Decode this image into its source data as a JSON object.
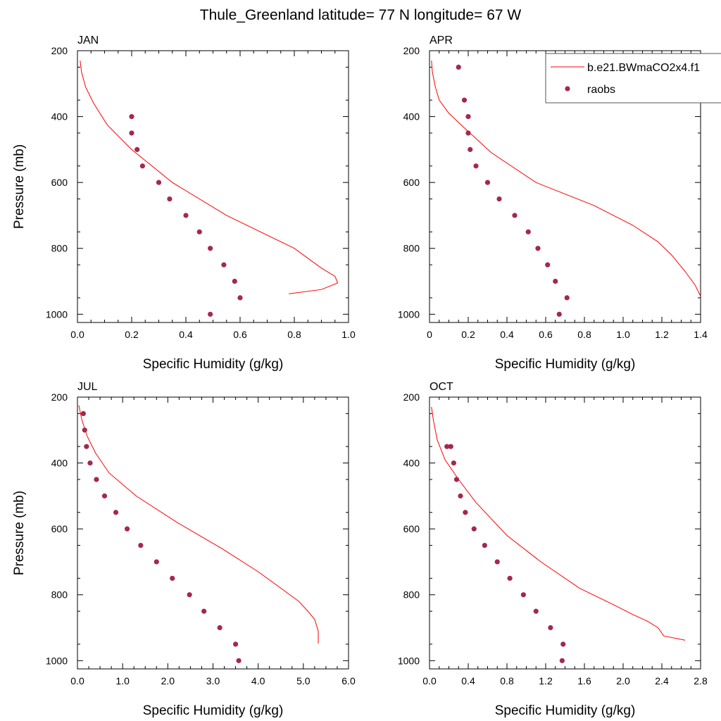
{
  "figure_title": "Thule_Greenland  latitude= 77 N longitude= 67 W",
  "colors": {
    "model": "#ff0000",
    "obs": "#a3284f",
    "axis": "#000000"
  },
  "legend": {
    "placement": "top-right",
    "model_label": "b.e21.BWmaCO2x4.f1",
    "obs_label": "raobs"
  },
  "chart_data": [
    {
      "type": "line+scatter",
      "title": "JAN",
      "xlabel": "Specific Humidity (g/kg)",
      "ylabel": "Pressure (mb)",
      "xlim": [
        0,
        1.0
      ],
      "ylim": [
        200,
        1025
      ],
      "y_reversed": true,
      "xticks": [
        "0.0",
        "0.2",
        "0.4",
        "0.6",
        "0.8",
        "1.0"
      ],
      "yticks": [
        "200",
        "400",
        "600",
        "800",
        "1000"
      ],
      "series": [
        {
          "name": "b.e21.BWmaCO2x4.f1",
          "kind": "line",
          "x": [
            0.78,
            0.9,
            0.96,
            0.95,
            0.9,
            0.8,
            0.55,
            0.35,
            0.2,
            0.11,
            0.06,
            0.03,
            0.015,
            0.01
          ],
          "y": [
            938,
            925,
            905,
            885,
            860,
            800,
            700,
            600,
            500,
            425,
            360,
            310,
            265,
            230
          ]
        },
        {
          "name": "raobs",
          "kind": "scatter",
          "x": [
            0.49,
            0.6,
            0.58,
            0.54,
            0.49,
            0.45,
            0.4,
            0.34,
            0.3,
            0.24,
            0.22,
            0.2,
            0.2
          ],
          "y": [
            1000,
            950,
            900,
            850,
            800,
            750,
            700,
            650,
            600,
            550,
            500,
            450,
            400
          ]
        }
      ]
    },
    {
      "type": "line+scatter",
      "title": "APR",
      "xlabel": "Specific Humidity (g/kg)",
      "ylabel": "",
      "xlim": [
        0,
        1.4
      ],
      "ylim": [
        200,
        1025
      ],
      "y_reversed": true,
      "xticks": [
        "0",
        "0.2",
        "0.4",
        "0.6",
        "0.8",
        "1.0",
        "1.2",
        "1.4"
      ],
      "yticks": [
        "200",
        "400",
        "600",
        "800",
        "1000"
      ],
      "series": [
        {
          "name": "b.e21.BWmaCO2x4.f1",
          "kind": "line",
          "x": [
            1.4,
            1.37,
            1.32,
            1.25,
            1.18,
            1.05,
            0.85,
            0.55,
            0.32,
            0.19,
            0.1,
            0.05,
            0.03,
            0.015,
            0.01
          ],
          "y": [
            945,
            910,
            870,
            820,
            780,
            730,
            670,
            600,
            510,
            440,
            390,
            350,
            310,
            265,
            230
          ]
        },
        {
          "name": "raobs",
          "kind": "scatter",
          "x": [
            0.67,
            0.71,
            0.65,
            0.61,
            0.56,
            0.51,
            0.44,
            0.36,
            0.3,
            0.24,
            0.21,
            0.2,
            0.2,
            0.18,
            0.15
          ],
          "y": [
            1000,
            950,
            900,
            850,
            800,
            750,
            700,
            650,
            600,
            550,
            500,
            450,
            400,
            350,
            250
          ]
        }
      ]
    },
    {
      "type": "line+scatter",
      "title": "JUL",
      "xlabel": "Specific Humidity (g/kg)",
      "ylabel": "Pressure (mb)",
      "xlim": [
        0,
        6.0
      ],
      "ylim": [
        200,
        1025
      ],
      "y_reversed": true,
      "xticks": [
        "0.0",
        "1.0",
        "2.0",
        "3.0",
        "4.0",
        "5.0",
        "6.0"
      ],
      "yticks": [
        "200",
        "400",
        "600",
        "800",
        "1000"
      ],
      "series": [
        {
          "name": "b.e21.BWmaCO2x4.f1",
          "kind": "line",
          "x": [
            5.33,
            5.33,
            5.25,
            5.1,
            4.9,
            4.6,
            4.0,
            3.2,
            2.2,
            1.3,
            0.7,
            0.4,
            0.22,
            0.1,
            0.03
          ],
          "y": [
            948,
            910,
            875,
            850,
            820,
            790,
            730,
            660,
            580,
            500,
            430,
            370,
            320,
            270,
            225
          ]
        },
        {
          "name": "raobs",
          "kind": "scatter",
          "x": [
            3.57,
            3.5,
            3.15,
            2.8,
            2.48,
            2.1,
            1.75,
            1.4,
            1.1,
            0.85,
            0.6,
            0.42,
            0.28,
            0.2,
            0.16,
            0.13
          ],
          "y": [
            1000,
            950,
            900,
            850,
            800,
            750,
            700,
            650,
            600,
            550,
            500,
            450,
            400,
            350,
            300,
            250
          ]
        }
      ]
    },
    {
      "type": "line+scatter",
      "title": "OCT",
      "xlabel": "Specific Humidity (g/kg)",
      "ylabel": "",
      "xlim": [
        0,
        2.8
      ],
      "ylim": [
        200,
        1025
      ],
      "y_reversed": true,
      "xticks": [
        "0.0",
        "0.4",
        "0.8",
        "1.2",
        "1.6",
        "2.0",
        "2.4",
        "2.8"
      ],
      "yticks": [
        "200",
        "400",
        "600",
        "800",
        "1000"
      ],
      "series": [
        {
          "name": "b.e21.BWmaCO2x4.f1",
          "kind": "line",
          "x": [
            2.64,
            2.42,
            2.36,
            2.25,
            2.1,
            1.9,
            1.55,
            1.15,
            0.8,
            0.48,
            0.3,
            0.16,
            0.08,
            0.04,
            0.02
          ],
          "y": [
            938,
            925,
            900,
            880,
            860,
            830,
            780,
            700,
            620,
            520,
            450,
            390,
            330,
            270,
            230
          ]
        },
        {
          "name": "raobs",
          "kind": "scatter",
          "x": [
            1.37,
            1.38,
            1.25,
            1.1,
            0.97,
            0.83,
            0.7,
            0.57,
            0.46,
            0.37,
            0.32,
            0.28,
            0.25,
            0.22,
            0.18
          ],
          "y": [
            1000,
            950,
            900,
            850,
            800,
            750,
            700,
            650,
            600,
            550,
            500,
            450,
            400,
            350,
            350
          ]
        }
      ]
    }
  ]
}
